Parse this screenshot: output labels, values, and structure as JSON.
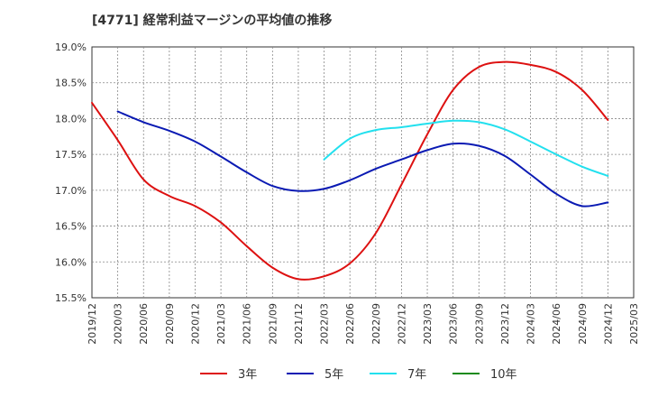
{
  "chart_data": {
    "type": "line",
    "title": "[4771]  経常利益マージンの平均値の推移",
    "xlabel": "",
    "ylabel": "",
    "x": [
      "2019/12",
      "2020/03",
      "2020/06",
      "2020/09",
      "2020/12",
      "2021/03",
      "2021/06",
      "2021/09",
      "2021/12",
      "2022/03",
      "2022/06",
      "2022/09",
      "2022/12",
      "2023/03",
      "2023/06",
      "2023/09",
      "2023/12",
      "2024/03",
      "2024/06",
      "2024/09",
      "2024/12",
      "2025/03"
    ],
    "ylim": [
      15.5,
      19.0
    ],
    "y_ticks": [
      15.5,
      16.0,
      16.5,
      17.0,
      17.5,
      18.0,
      18.5,
      19.0
    ],
    "y_tick_labels": [
      "15.5%",
      "16.0%",
      "16.5%",
      "17.0%",
      "17.5%",
      "18.0%",
      "18.5%",
      "19.0%"
    ],
    "grid": true,
    "legend_position": "bottom",
    "series": [
      {
        "name": "3年",
        "color": "#dd1111",
        "values": [
          18.22,
          17.7,
          17.15,
          16.92,
          16.78,
          16.55,
          16.22,
          15.92,
          15.76,
          15.8,
          15.98,
          16.4,
          17.08,
          17.78,
          18.4,
          18.72,
          18.79,
          18.75,
          18.65,
          18.4,
          17.98,
          null
        ]
      },
      {
        "name": "5年",
        "color": "#0a1ab3",
        "values": [
          null,
          18.1,
          17.95,
          17.83,
          17.68,
          17.47,
          17.25,
          17.06,
          16.99,
          17.02,
          17.14,
          17.3,
          17.43,
          17.56,
          17.65,
          17.62,
          17.48,
          17.22,
          16.95,
          16.78,
          16.83,
          null
        ]
      },
      {
        "name": "7年",
        "color": "#22e0ee",
        "values": [
          null,
          null,
          null,
          null,
          null,
          null,
          null,
          null,
          null,
          17.43,
          17.72,
          17.84,
          17.88,
          17.93,
          17.97,
          17.95,
          17.85,
          17.68,
          17.5,
          17.33,
          17.2,
          null
        ]
      },
      {
        "name": "10年",
        "color": "#1a8a1a",
        "values": [
          null,
          null,
          null,
          null,
          null,
          null,
          null,
          null,
          null,
          null,
          null,
          null,
          null,
          null,
          null,
          null,
          null,
          null,
          null,
          null,
          null,
          null
        ]
      }
    ]
  }
}
